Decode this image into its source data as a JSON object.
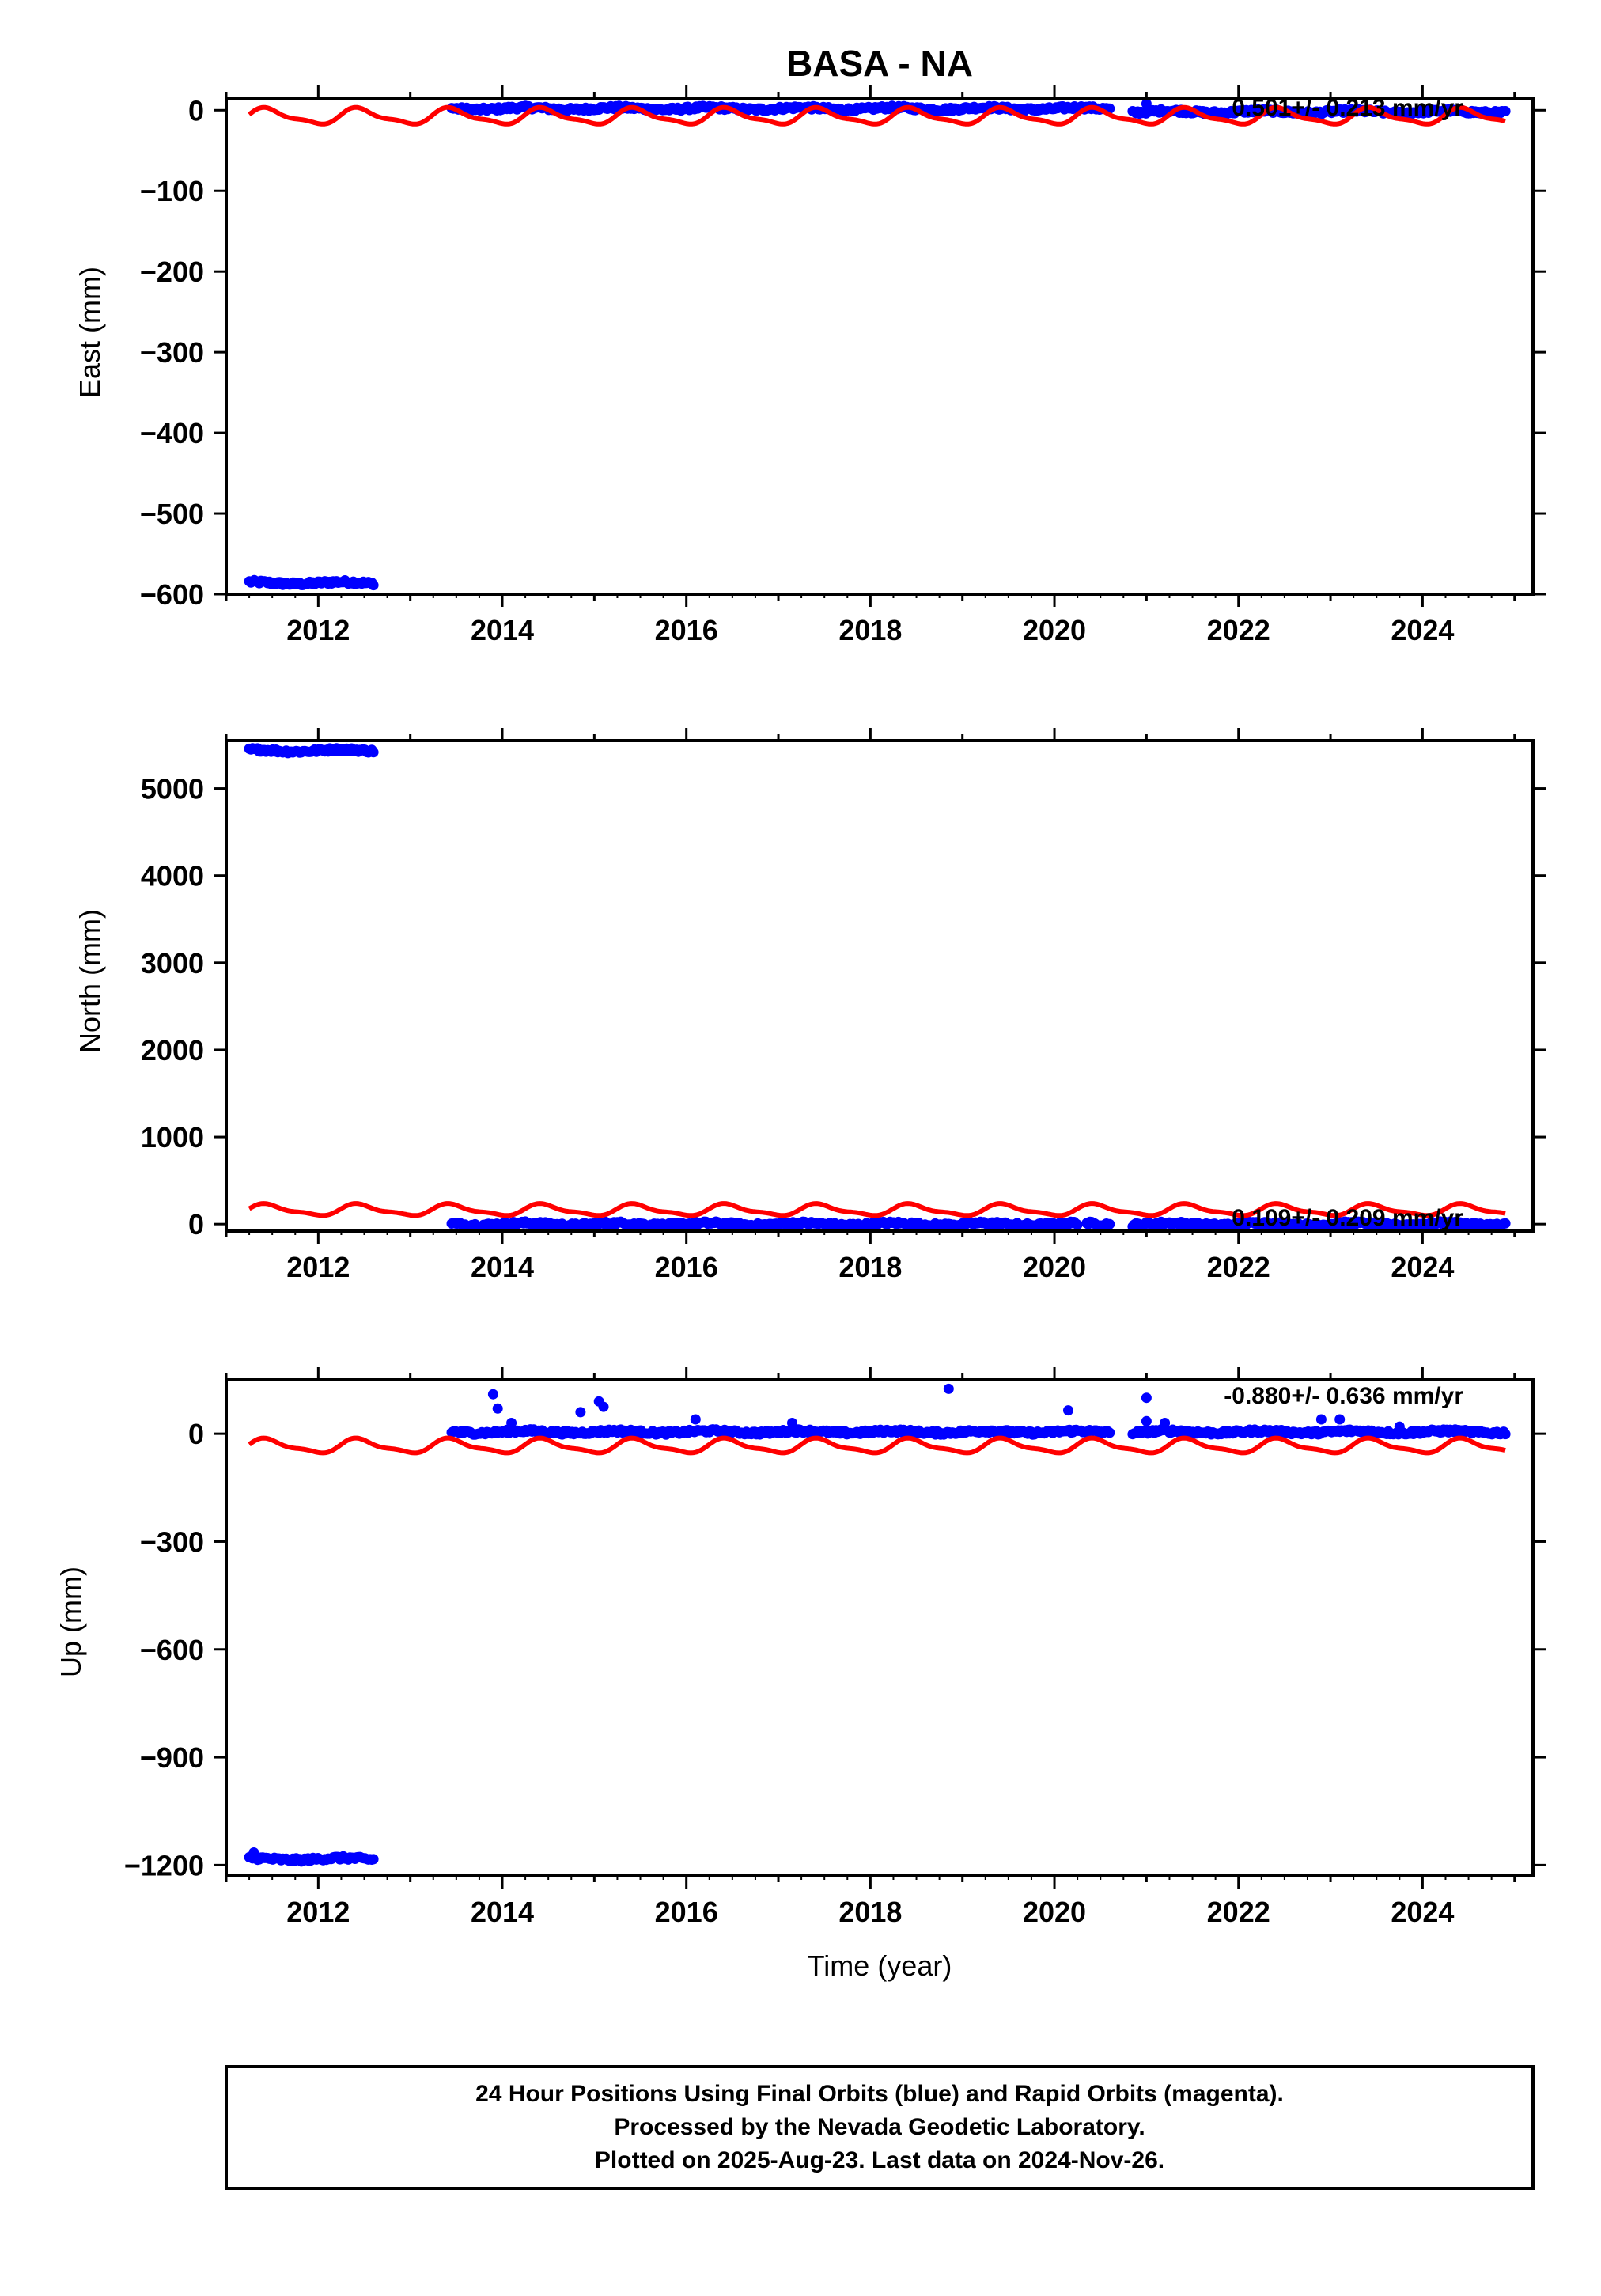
{
  "title": "BASA - NA",
  "xlabel": "Time (year)",
  "footer": {
    "line1": "24 Hour Positions Using Final Orbits (blue) and Rapid Orbits (magenta).",
    "line2": "Processed by the Nevada Geodetic Laboratory.",
    "line3": "Plotted on 2025-Aug-23. Last data on 2024-Nov-26."
  },
  "colors": {
    "final": "#0000ff",
    "model": "#ff0000",
    "frame": "#000000"
  },
  "chart_data": [
    {
      "type": "scatter",
      "ylabel": "East (mm)",
      "rate_label": "0.501+/- 0.213 mm/yr",
      "xlim": [
        2011.0,
        2025.2
      ],
      "ylim": [
        -600,
        15
      ],
      "xticks": [
        2012,
        2014,
        2016,
        2018,
        2020,
        2022,
        2024
      ],
      "yticks": [
        0,
        -100,
        -200,
        -300,
        -400,
        -500,
        -600
      ],
      "ytick_labels": [
        "0",
        "−100",
        "−200",
        "−300",
        "−400",
        "−500",
        "−600"
      ],
      "segments": [
        {
          "x_start": 2011.25,
          "x_end": 2012.6,
          "y_mean": -586
        },
        {
          "x_start": 2013.45,
          "x_end": 2020.6,
          "y_mean": 2
        },
        {
          "x_start": 2020.85,
          "x_end": 2024.9,
          "y_mean": -2
        }
      ],
      "outliers": [
        {
          "x": 2021.0,
          "y": 8
        }
      ],
      "model": {
        "x_start": 2011.25,
        "x_end": 2024.9,
        "base": -8,
        "amplitude": 9,
        "period_years": 1.0,
        "y_start": -15
      }
    },
    {
      "type": "scatter",
      "ylabel": "North (mm)",
      "rate_label": "0.109+/- 0.209 mm/yr",
      "xlim": [
        2011.0,
        2025.2
      ],
      "ylim": [
        -80,
        5550
      ],
      "xticks": [
        2012,
        2014,
        2016,
        2018,
        2020,
        2022,
        2024
      ],
      "yticks": [
        0,
        1000,
        2000,
        3000,
        4000,
        5000
      ],
      "ytick_labels": [
        "0",
        "1000",
        "2000",
        "3000",
        "4000",
        "5000"
      ],
      "segments": [
        {
          "x_start": 2011.25,
          "x_end": 2012.6,
          "y_mean": 5435
        },
        {
          "x_start": 2013.45,
          "x_end": 2020.25,
          "y_mean": 0
        },
        {
          "x_start": 2020.35,
          "x_end": 2020.6,
          "y_mean": 0
        },
        {
          "x_start": 2020.85,
          "x_end": 2024.9,
          "y_mean": 0
        }
      ],
      "outliers": [],
      "model": {
        "x_start": 2011.25,
        "x_end": 2024.9,
        "base": 160,
        "amplitude": 60,
        "period_years": 1.0,
        "y_start": 170
      }
    },
    {
      "type": "scatter",
      "ylabel": "Up (mm)",
      "rate_label": "-0.880+/- 0.636 mm/yr",
      "xlim": [
        2011.0,
        2025.2
      ],
      "ylim": [
        -1230,
        150
      ],
      "xticks": [
        2012,
        2014,
        2016,
        2018,
        2020,
        2022,
        2024
      ],
      "yticks": [
        0,
        -300,
        -600,
        -900,
        -1200
      ],
      "ytick_labels": [
        "0",
        "−300",
        "−600",
        "−900",
        "−1200"
      ],
      "segments": [
        {
          "x_start": 2011.25,
          "x_end": 2012.6,
          "y_mean": -1183
        },
        {
          "x_start": 2013.45,
          "x_end": 2020.6,
          "y_mean": 5
        },
        {
          "x_start": 2020.85,
          "x_end": 2024.9,
          "y_mean": 5
        }
      ],
      "outliers": [
        {
          "x": 2011.3,
          "y": -1165
        },
        {
          "x": 2013.9,
          "y": 110
        },
        {
          "x": 2013.95,
          "y": 70
        },
        {
          "x": 2014.1,
          "y": 30
        },
        {
          "x": 2014.85,
          "y": 60
        },
        {
          "x": 2015.05,
          "y": 90
        },
        {
          "x": 2015.1,
          "y": 75
        },
        {
          "x": 2016.1,
          "y": 40
        },
        {
          "x": 2017.15,
          "y": 30
        },
        {
          "x": 2018.85,
          "y": 125
        },
        {
          "x": 2020.15,
          "y": 65
        },
        {
          "x": 2021.0,
          "y": 100
        },
        {
          "x": 2021.0,
          "y": 35
        },
        {
          "x": 2021.2,
          "y": 30
        },
        {
          "x": 2022.9,
          "y": 40
        },
        {
          "x": 2023.1,
          "y": 40
        },
        {
          "x": 2023.75,
          "y": 20
        }
      ],
      "model": {
        "x_start": 2011.25,
        "x_end": 2024.9,
        "base": -35,
        "amplitude": 18,
        "period_years": 1.0,
        "y_start": -40
      }
    }
  ]
}
